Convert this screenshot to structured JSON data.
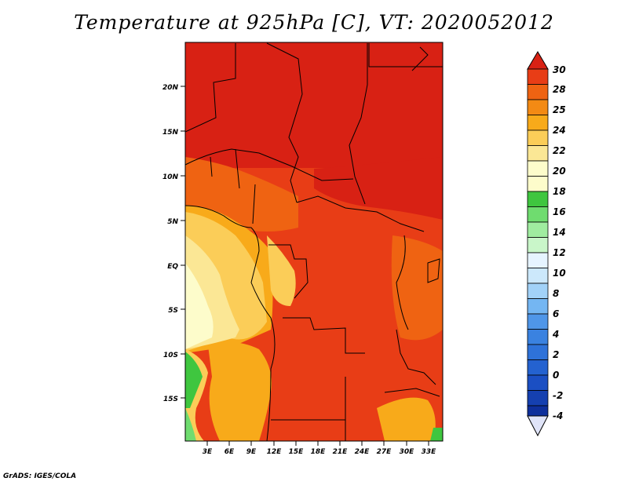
{
  "title": "Temperature at 925hPa [C], VT: 2020052012",
  "credit": "GrADS: IGES/COLA",
  "map": {
    "lat_labels": [
      "20N",
      "15N",
      "10N",
      "5N",
      "EQ",
      "5S",
      "10S",
      "15S"
    ],
    "lon_labels": [
      "3E",
      "6E",
      "9E",
      "12E",
      "15E",
      "18E",
      "21E",
      "24E",
      "27E",
      "30E",
      "33E"
    ]
  },
  "colorbar": {
    "levels": [
      "30",
      "28",
      "25",
      "24",
      "22",
      "20",
      "18",
      "16",
      "14",
      "12",
      "10",
      "8",
      "6",
      "4",
      "2",
      "0",
      "-2",
      "-4"
    ],
    "colors": [
      "#d82114",
      "#e83d16",
      "#ef6312",
      "#f38a14",
      "#f8aa1a",
      "#fbcd58",
      "#fbe795",
      "#fdfccb",
      "#3fc63f",
      "#6fdc6f",
      "#a0eca0",
      "#c9f6c9",
      "#cce8fb",
      "#a2d2f8",
      "#74b6f2",
      "#4f96e8",
      "#2e72d9",
      "#1b4fc3",
      "#0e2f9b",
      "#0a1466"
    ]
  }
}
